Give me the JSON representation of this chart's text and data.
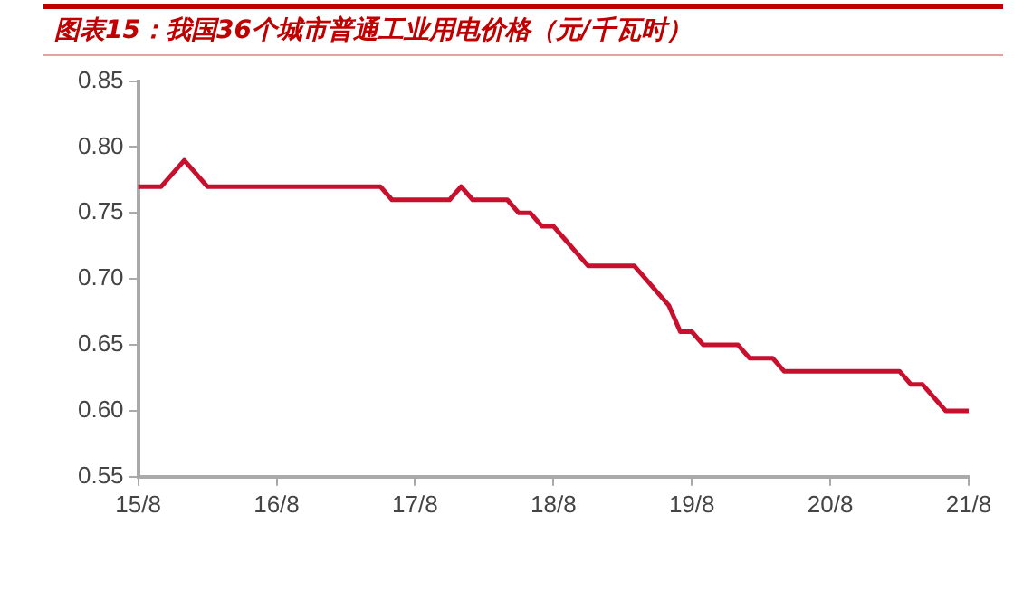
{
  "chart_data": {
    "type": "line",
    "title": "图表15：我国36个城市普通工业用电价格（元/千瓦时）",
    "categories": [
      "15/8",
      null,
      null,
      null,
      null,
      null,
      null,
      null,
      null,
      null,
      null,
      null,
      "16/8",
      null,
      null,
      null,
      null,
      null,
      null,
      null,
      null,
      null,
      null,
      null,
      "17/8",
      null,
      null,
      null,
      null,
      null,
      null,
      null,
      null,
      null,
      null,
      null,
      "18/8",
      null,
      null,
      null,
      null,
      null,
      null,
      null,
      null,
      null,
      null,
      null,
      "19/8",
      null,
      null,
      null,
      null,
      null,
      null,
      null,
      null,
      null,
      null,
      null,
      "20/8",
      null,
      null,
      null,
      null,
      null,
      null,
      null,
      null,
      null,
      null,
      null,
      "21/8"
    ],
    "series": [
      {
        "color": "#c8102e",
        "values": [
          0.77,
          0.77,
          0.77,
          0.78,
          0.79,
          0.78,
          0.77,
          0.77,
          0.77,
          0.77,
          0.77,
          0.77,
          0.77,
          0.77,
          0.77,
          0.77,
          0.77,
          0.77,
          0.77,
          0.77,
          0.77,
          0.77,
          0.76,
          0.76,
          0.76,
          0.76,
          0.76,
          0.76,
          0.77,
          0.76,
          0.76,
          0.76,
          0.76,
          0.75,
          0.75,
          0.74,
          0.74,
          0.73,
          0.72,
          0.71,
          0.71,
          0.71,
          0.71,
          0.71,
          0.7,
          0.69,
          0.68,
          0.66,
          0.66,
          0.65,
          0.65,
          0.65,
          0.65,
          0.64,
          0.64,
          0.64,
          0.63,
          0.63,
          0.63,
          0.63,
          0.63,
          0.63,
          0.63,
          0.63,
          0.63,
          0.63,
          0.63,
          0.62,
          0.62,
          0.61,
          0.6,
          0.6,
          0.6
        ]
      }
    ],
    "ylim": [
      0.55,
      0.85
    ],
    "yticks": [
      0.55,
      {
        "value": 0.6,
        "label": "0.60"
      },
      0.65,
      {
        "value": 0.7,
        "label": "0.70"
      },
      0.75,
      {
        "value": 0.8,
        "label": "0.80"
      },
      0.85
    ],
    "grid": false,
    "legend": false,
    "marker": "none",
    "line_style": "solid"
  }
}
